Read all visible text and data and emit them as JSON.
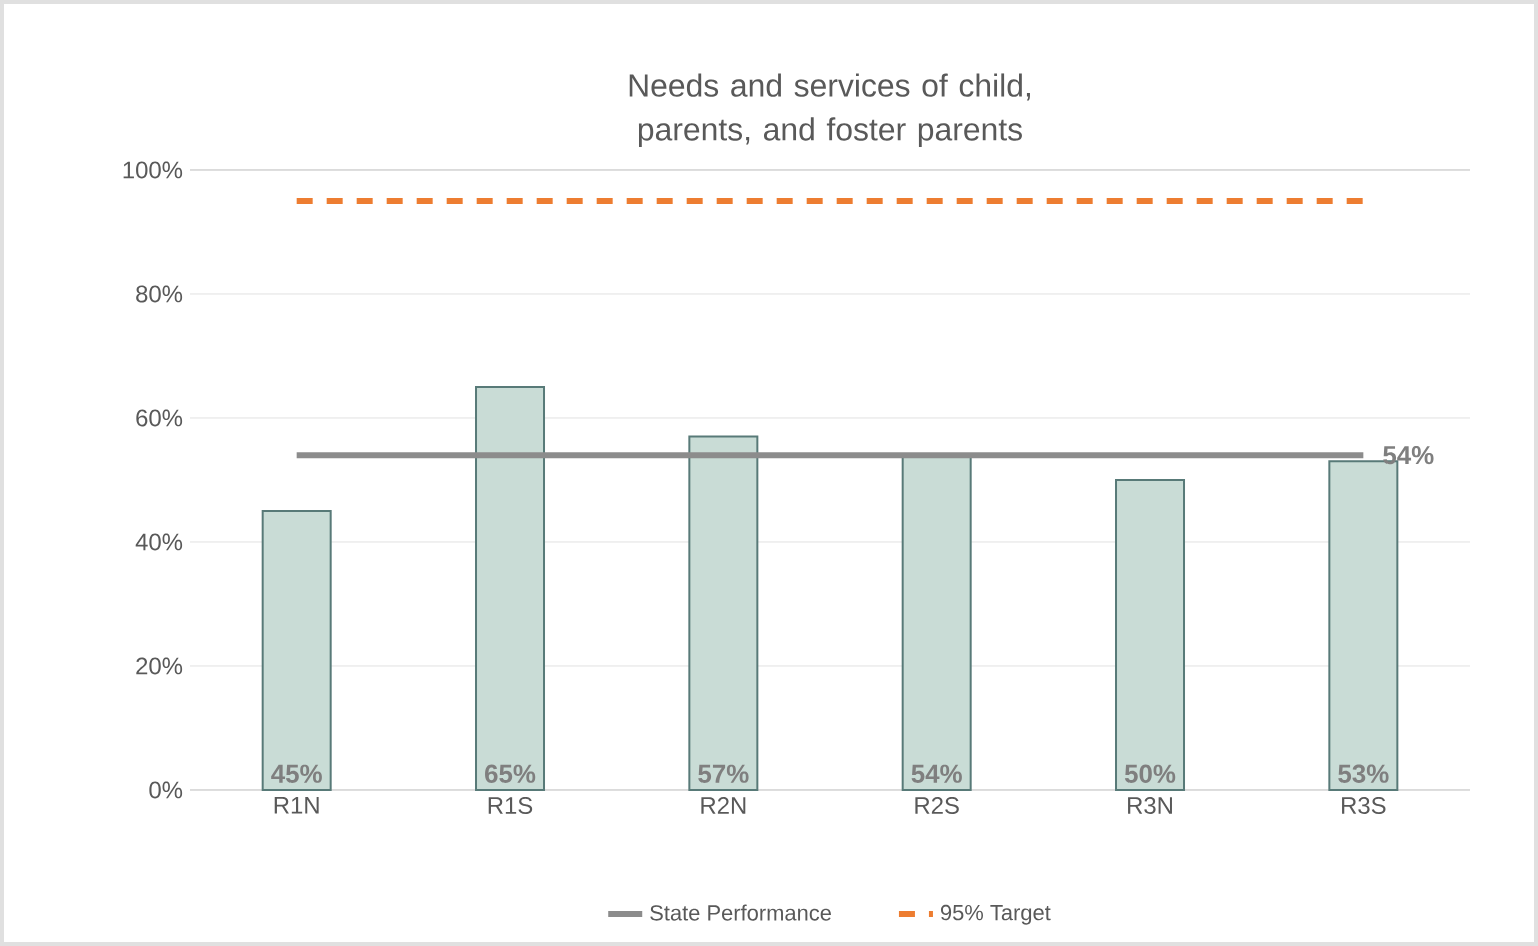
{
  "chart_data": {
    "type": "bar",
    "title": "Needs and services of child, parents, and foster parents",
    "categories": [
      "R1N",
      "R1S",
      "R2N",
      "R2S",
      "R3N",
      "R3S"
    ],
    "series": [
      {
        "color": "#c9dcd6",
        "values": [
          45,
          65,
          57,
          54,
          50,
          53
        ],
        "value_labels": [
          "45%",
          "65%",
          "57%",
          "54%",
          "50%",
          "53%"
        ]
      },
      {
        "type": "line",
        "name": "State Performance",
        "color": "#8c8c8c",
        "values": [
          54,
          54,
          54,
          54,
          54,
          54
        ],
        "value_labels": [
          null,
          null,
          null,
          null,
          null,
          "54%"
        ]
      },
      {
        "type": "line",
        "name": "95% Target",
        "color": "#ed7d31",
        "values": [
          95,
          95,
          95,
          95,
          95,
          95
        ],
        "line_style": "dashed"
      }
    ],
    "ylim": [
      0,
      100
    ],
    "yticks": [
      {
        "value": 0,
        "label": "0%"
      },
      {
        "value": 20,
        "label": "20%"
      },
      {
        "value": 40,
        "label": "40%"
      },
      {
        "value": 60,
        "label": "60%"
      },
      {
        "value": 80,
        "label": "80%"
      },
      {
        "value": 100,
        "label": "100%"
      }
    ],
    "grid": "y",
    "legend": "bottom",
    "marker": "none"
  }
}
